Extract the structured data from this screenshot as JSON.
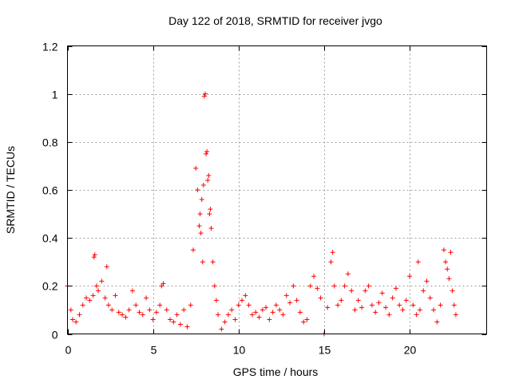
{
  "chart_data": {
    "type": "scatter",
    "title": "Day 122 of 2018, SRMTID for receiver jvgo",
    "xlabel": "GPS time / hours",
    "ylabel": "SRMTID / TECUs",
    "xlim": [
      0,
      24.5
    ],
    "ylim": [
      0,
      1.2
    ],
    "xticks": [
      0,
      5,
      10,
      15,
      20
    ],
    "xtick_labels": [
      "0",
      "5",
      "10",
      "15",
      "20"
    ],
    "yticks": [
      0,
      0.2,
      0.4,
      0.6,
      0.8,
      1.0,
      1.2
    ],
    "ytick_labels": [
      "0",
      "0.2",
      "0.4",
      "0.6",
      "0.8",
      "1",
      "1.2"
    ],
    "grid": true,
    "marker": "+",
    "series": [
      {
        "name": "SRMTID",
        "color": "#ff0000",
        "x": [
          0.0,
          0.2,
          0.3,
          0.5,
          0.7,
          0.9,
          1.1,
          1.3,
          1.5,
          1.55,
          1.6,
          1.7,
          1.8,
          2.0,
          2.2,
          2.3,
          2.4,
          2.6,
          2.8,
          3.0,
          3.2,
          3.4,
          3.6,
          3.8,
          4.0,
          4.2,
          4.4,
          4.6,
          4.8,
          5.0,
          5.2,
          5.4,
          5.5,
          5.6,
          5.8,
          6.0,
          6.2,
          6.4,
          6.6,
          6.8,
          7.0,
          7.2,
          7.35,
          7.5,
          7.6,
          7.7,
          7.75,
          7.8,
          7.85,
          7.9,
          7.95,
          8.0,
          8.05,
          8.1,
          8.15,
          8.2,
          8.25,
          8.3,
          8.35,
          8.4,
          8.5,
          8.6,
          8.7,
          8.8,
          9.0,
          9.2,
          9.4,
          9.6,
          9.8,
          10.0,
          10.2,
          10.4,
          10.6,
          10.8,
          11.0,
          11.2,
          11.4,
          11.6,
          11.8,
          12.0,
          12.2,
          12.4,
          12.6,
          12.8,
          13.0,
          13.2,
          13.4,
          13.6,
          13.8,
          14.0,
          14.2,
          14.4,
          14.6,
          14.8,
          15.0,
          15.2,
          15.4,
          15.5,
          15.6,
          15.8,
          16.0,
          16.2,
          16.4,
          16.6,
          16.8,
          17.0,
          17.2,
          17.4,
          17.6,
          17.8,
          18.0,
          18.2,
          18.4,
          18.6,
          18.8,
          19.0,
          19.2,
          19.4,
          19.6,
          19.8,
          20.0,
          20.2,
          20.4,
          20.5,
          20.6,
          20.8,
          21.0,
          21.2,
          21.4,
          21.6,
          21.8,
          22.0,
          22.1,
          22.2,
          22.3,
          22.4,
          22.5,
          22.6,
          22.7
        ],
        "y": [
          0.2,
          0.1,
          0.06,
          0.05,
          0.08,
          0.12,
          0.15,
          0.14,
          0.16,
          0.32,
          0.33,
          0.2,
          0.18,
          0.22,
          0.15,
          0.28,
          0.12,
          0.1,
          0.16,
          0.09,
          0.08,
          0.07,
          0.1,
          0.18,
          0.12,
          0.09,
          0.08,
          0.15,
          0.1,
          0.06,
          0.09,
          0.12,
          0.2,
          0.21,
          0.1,
          0.06,
          0.05,
          0.08,
          0.04,
          0.1,
          0.03,
          0.12,
          0.35,
          0.69,
          0.6,
          0.45,
          0.5,
          0.42,
          0.56,
          0.3,
          0.62,
          0.99,
          1.0,
          0.75,
          0.76,
          0.64,
          0.66,
          0.5,
          0.52,
          0.44,
          0.3,
          0.2,
          0.14,
          0.08,
          0.02,
          0.05,
          0.08,
          0.1,
          0.06,
          0.12,
          0.14,
          0.16,
          0.12,
          0.08,
          0.09,
          0.07,
          0.1,
          0.11,
          0.06,
          0.09,
          0.12,
          0.1,
          0.08,
          0.16,
          0.13,
          0.2,
          0.14,
          0.09,
          0.05,
          0.06,
          0.2,
          0.24,
          0.19,
          0.15,
          0.0,
          0.11,
          0.3,
          0.34,
          0.2,
          0.12,
          0.14,
          0.2,
          0.25,
          0.18,
          0.1,
          0.14,
          0.11,
          0.18,
          0.2,
          0.12,
          0.09,
          0.13,
          0.17,
          0.11,
          0.08,
          0.15,
          0.19,
          0.12,
          0.1,
          0.14,
          0.24,
          0.12,
          0.08,
          0.3,
          0.1,
          0.18,
          0.22,
          0.15,
          0.1,
          0.05,
          0.12,
          0.35,
          0.3,
          0.27,
          0.23,
          0.34,
          0.18,
          0.12,
          0.08
        ]
      }
    ]
  }
}
